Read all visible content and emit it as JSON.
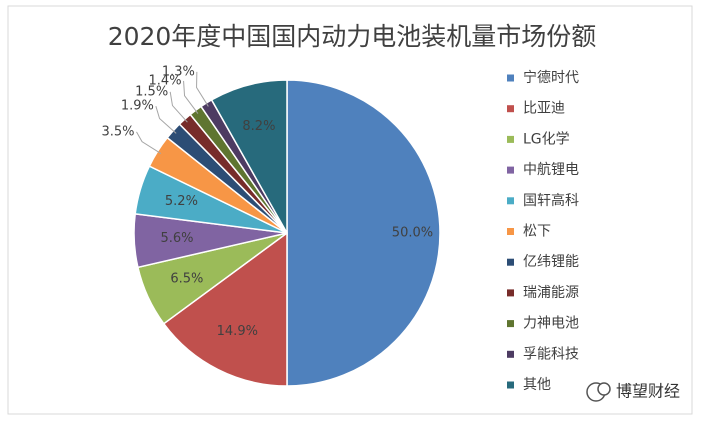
{
  "chart_data": {
    "type": "pie",
    "title": "2020年度中国国内动力电池装机量市场份额",
    "categories": [
      "宁德时代",
      "比亚迪",
      "LG化学",
      "中航锂电",
      "国轩高科",
      "松下",
      "亿纬锂能",
      "瑞浦能源",
      "力神电池",
      "孚能科技",
      "其他"
    ],
    "values": [
      50.0,
      14.9,
      6.5,
      5.6,
      5.2,
      3.5,
      1.9,
      1.5,
      1.4,
      1.3,
      8.2
    ],
    "value_labels": [
      "50.0%",
      "14.9%",
      "6.5%",
      "5.6%",
      "5.2%",
      "3.5%",
      "1.9%",
      "1.5%",
      "1.4%",
      "1.3%",
      "8.2%"
    ],
    "colors": [
      "#4f81bd",
      "#c0504d",
      "#9bbb59",
      "#8064a2",
      "#4bacc6",
      "#f79646",
      "#2c4d75",
      "#772c2a",
      "#5f7530",
      "#4d3b62",
      "#276a7c"
    ],
    "legend": "right"
  },
  "watermark": "博望财经"
}
